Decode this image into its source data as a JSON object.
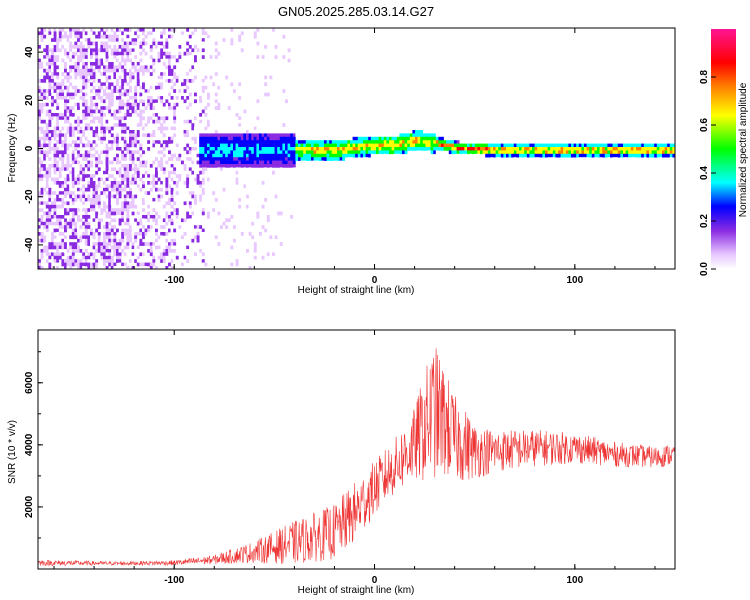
{
  "title": "GN05.2025.285.03.14.G27",
  "chart_data": [
    {
      "type": "heatmap",
      "xlabel": "Height of straight line (km)",
      "ylabel": "Frequency (Hz)",
      "xlim": [
        -168,
        150
      ],
      "ylim": [
        -50,
        50
      ],
      "xticks": [
        -100,
        0,
        100
      ],
      "yticks": [
        -40,
        -20,
        0,
        20,
        40
      ],
      "colorbar": {
        "label": "Normalized spectral amplitude",
        "range": [
          0,
          1
        ],
        "ticks": [
          "0.0",
          "0.2",
          "0.4",
          "0.6",
          "0.8"
        ],
        "colors": [
          "#ffffff",
          "#8a2be2",
          "#0000ff",
          "#00ffff",
          "#00ff00",
          "#ffff00",
          "#ff8000",
          "#ff0000",
          "#ff1493"
        ]
      },
      "features": {
        "broadband_noise_x": [
          -168,
          -85
        ],
        "line_center_hz": [
          [
            -85,
            0
          ],
          [
            -60,
            0
          ],
          [
            -40,
            0
          ],
          [
            -20,
            0
          ],
          [
            0,
            2
          ],
          [
            10,
            2
          ],
          [
            20,
            4
          ],
          [
            30,
            3
          ],
          [
            40,
            1
          ],
          [
            60,
            0
          ],
          [
            80,
            0
          ],
          [
            100,
            0
          ],
          [
            120,
            0
          ],
          [
            150,
            0
          ]
        ]
      }
    },
    {
      "type": "line",
      "xlabel": "Height of straight line (km)",
      "ylabel": "SNR (10 * v/v)",
      "xlim": [
        -168,
        150
      ],
      "ylim": [
        0,
        7700
      ],
      "xticks": [
        -100,
        0,
        100
      ],
      "yticks": [
        2000,
        4000,
        6000
      ],
      "color": "#ee3333",
      "envelope": {
        "x": [
          -168,
          -130,
          -100,
          -80,
          -60,
          -40,
          -20,
          -10,
          0,
          10,
          20,
          25,
          30,
          35,
          40,
          45,
          50,
          60,
          80,
          100,
          120,
          140,
          150
        ],
        "mean": [
          200,
          180,
          200,
          300,
          550,
          850,
          1200,
          1800,
          2600,
          3300,
          4000,
          4600,
          5100,
          4700,
          4200,
          4000,
          3800,
          3800,
          3900,
          3900,
          3700,
          3600,
          3700
        ],
        "spread": [
          100,
          60,
          80,
          150,
          350,
          700,
          900,
          1000,
          900,
          900,
          1200,
          1800,
          2200,
          1800,
          1400,
          1200,
          900,
          700,
          600,
          500,
          400,
          350,
          350
        ]
      }
    }
  ]
}
